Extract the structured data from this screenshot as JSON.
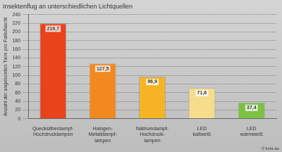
{
  "chart_data": {
    "type": "bar",
    "title": "Insektenflug an unterschiedlichen Lichtquellen",
    "y_label": "Anzahl der angelockten Tiere pro Falle/Nacht",
    "annotations": [
      "© licht.de"
    ],
    "categories": [
      [
        "Quecksilberdampf-",
        "Hochdrucklampen"
      ],
      [
        "Halogen-",
        "Metalldampf-",
        "lampen"
      ],
      [
        "Natriumdampf-",
        "Hochdruck-",
        "lampen"
      ],
      [
        "LED",
        "kaltweiß"
      ],
      [
        "LED",
        "warmweiß"
      ]
    ],
    "values": [
      219.7,
      127.5,
      96.9,
      71.6,
      37.4
    ],
    "value_labels": [
      "219,7",
      "127,5",
      "96,9",
      "71,6",
      "37,4"
    ],
    "colors": [
      "#e8431a",
      "#f2891f",
      "#f6b425",
      "#f6dd8c",
      "#7cc242"
    ],
    "ylim": [
      0,
      240
    ],
    "yticks": [
      0,
      20,
      40,
      60,
      80,
      100,
      120,
      140,
      160,
      180,
      200,
      220,
      240
    ],
    "grid": true,
    "data_labels": true
  }
}
